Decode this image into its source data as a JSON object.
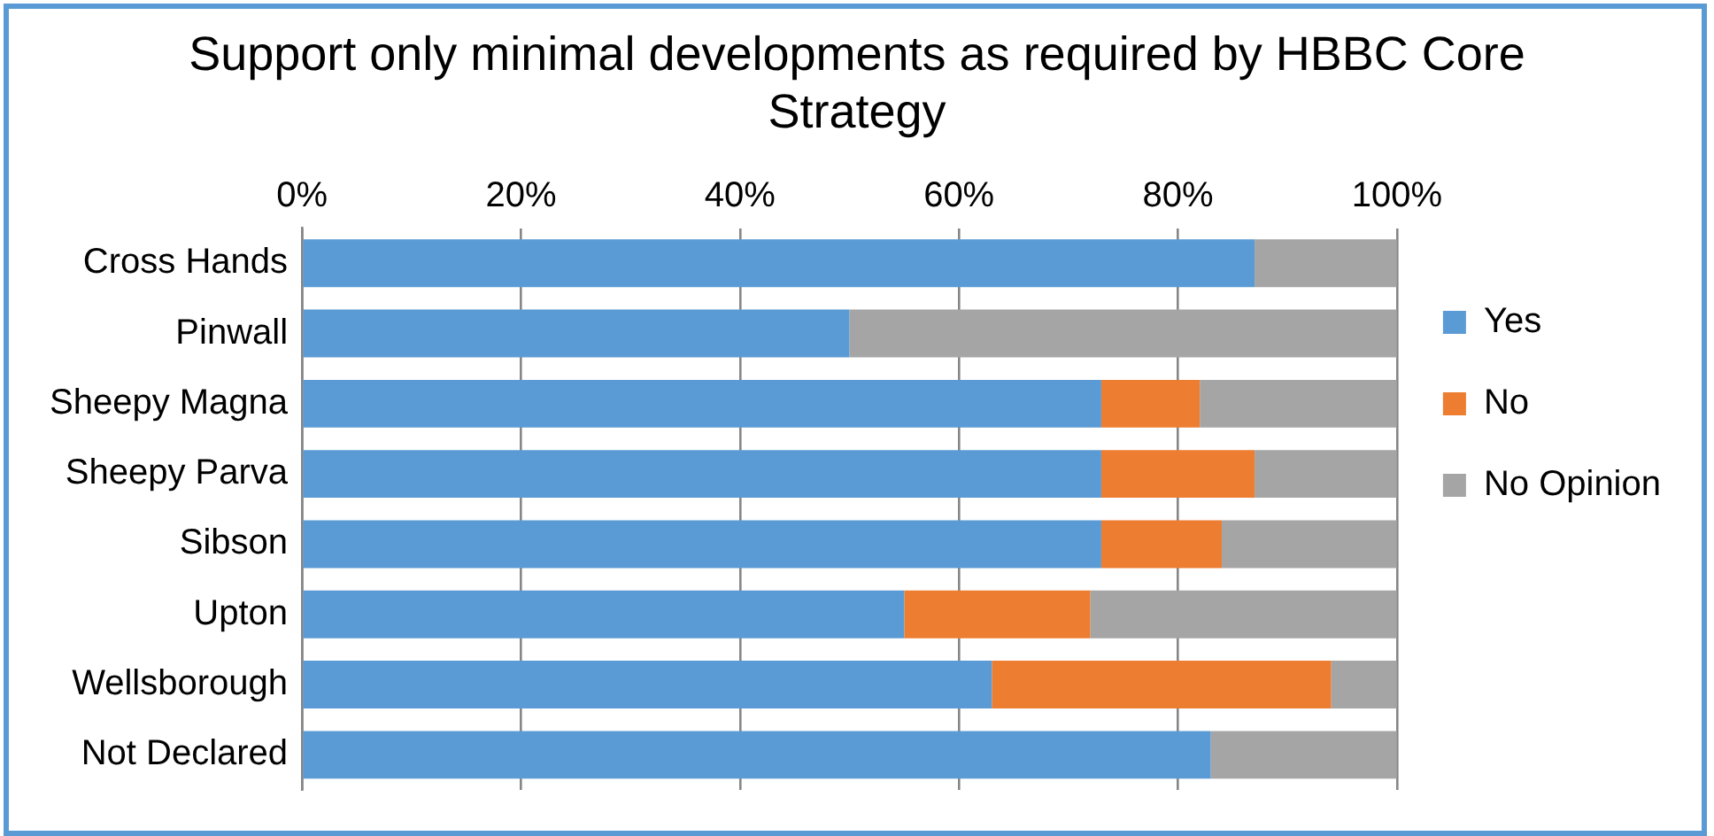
{
  "chart_data": {
    "type": "bar",
    "orientation": "horizontal",
    "stacked": true,
    "title": "Support only minimal developments as required by HBBC Core Strategy",
    "categories": [
      "Cross Hands",
      "Pinwall",
      "Sheepy Magna",
      "Sheepy Parva",
      "Sibson",
      "Upton",
      "Wellsborough",
      "Not Declared"
    ],
    "series": [
      {
        "name": "Yes",
        "color": "#5b9bd5",
        "values": [
          87,
          50,
          73,
          73,
          73,
          55,
          63,
          83
        ]
      },
      {
        "name": "No",
        "color": "#ed7d31",
        "values": [
          0,
          0,
          9,
          14,
          11,
          17,
          31,
          0
        ]
      },
      {
        "name": "No Opinion",
        "color": "#a5a5a5",
        "values": [
          13,
          50,
          18,
          13,
          16,
          28,
          6,
          17
        ]
      }
    ],
    "xlim": [
      0,
      100
    ],
    "xticks": [
      {
        "value": 0,
        "label": "0%"
      },
      {
        "value": 20,
        "label": "20%"
      },
      {
        "value": 40,
        "label": "40%"
      },
      {
        "value": 60,
        "label": "60%"
      },
      {
        "value": 80,
        "label": "80%"
      },
      {
        "value": 100,
        "label": "100%"
      }
    ],
    "grid": "x",
    "legend": "right"
  }
}
